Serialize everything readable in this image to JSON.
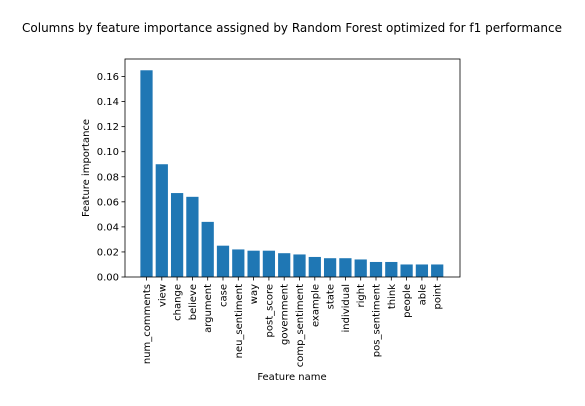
{
  "chart_data": {
    "type": "bar",
    "title": "Columns by feature importance assigned by Random Forest optimized for f1 performance",
    "xlabel": "Feature name",
    "ylabel": "Feature importance",
    "ylim": [
      0,
      0.174
    ],
    "yticks": [
      0.0,
      0.02,
      0.04,
      0.06,
      0.08,
      0.1,
      0.12,
      0.14,
      0.16
    ],
    "ytick_labels": [
      "0.00",
      "0.02",
      "0.04",
      "0.06",
      "0.08",
      "0.10",
      "0.12",
      "0.14",
      "0.16"
    ],
    "grid": false,
    "bar_color": "#1f77b4",
    "categories": [
      "num_comments",
      "view",
      "change",
      "believe",
      "argument",
      "case",
      "neu_sentiment",
      "way",
      "post_score",
      "government",
      "comp_sentiment",
      "example",
      "state",
      "individual",
      "right",
      "pos_sentiment",
      "think",
      "people",
      "able",
      "point"
    ],
    "values": [
      0.165,
      0.09,
      0.067,
      0.064,
      0.044,
      0.025,
      0.022,
      0.021,
      0.021,
      0.019,
      0.018,
      0.016,
      0.015,
      0.015,
      0.014,
      0.012,
      0.012,
      0.01,
      0.01,
      0.01
    ]
  }
}
